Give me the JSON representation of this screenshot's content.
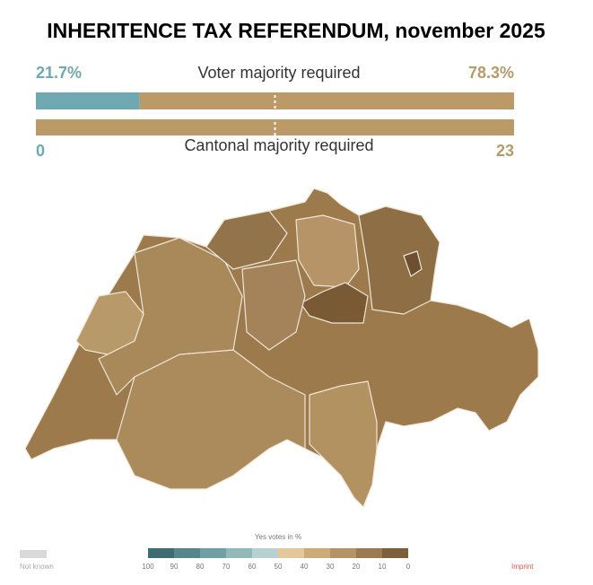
{
  "title": "INHERITENCE TAX REFERENDUM, november 2025",
  "voter_bar": {
    "label": "Voter majority required",
    "values": [
      21.7,
      78.3
    ],
    "value_labels": [
      "21.7%",
      "78.3%"
    ],
    "colors": [
      "#6fa8b0",
      "#bb9a68"
    ]
  },
  "cantonal_bar": {
    "label": "Cantonal majority required",
    "values": [
      0,
      23
    ],
    "colors": [
      "#6fa8b0",
      "#bb9a68"
    ]
  },
  "legend": {
    "title": "Yes votes in %",
    "ticks": [
      100,
      90,
      80,
      70,
      60,
      50,
      40,
      30,
      20,
      10,
      0
    ],
    "colors": [
      "#3f6c73",
      "#55868c",
      "#70a0a5",
      "#92b8ba",
      "#b7d1d1",
      "#e4c79b",
      "#cdab79",
      "#b69267",
      "#9c7a4f",
      "#7e5f3c"
    ],
    "not_known": "Not known"
  },
  "footer": {
    "imprint": "Imprint"
  }
}
